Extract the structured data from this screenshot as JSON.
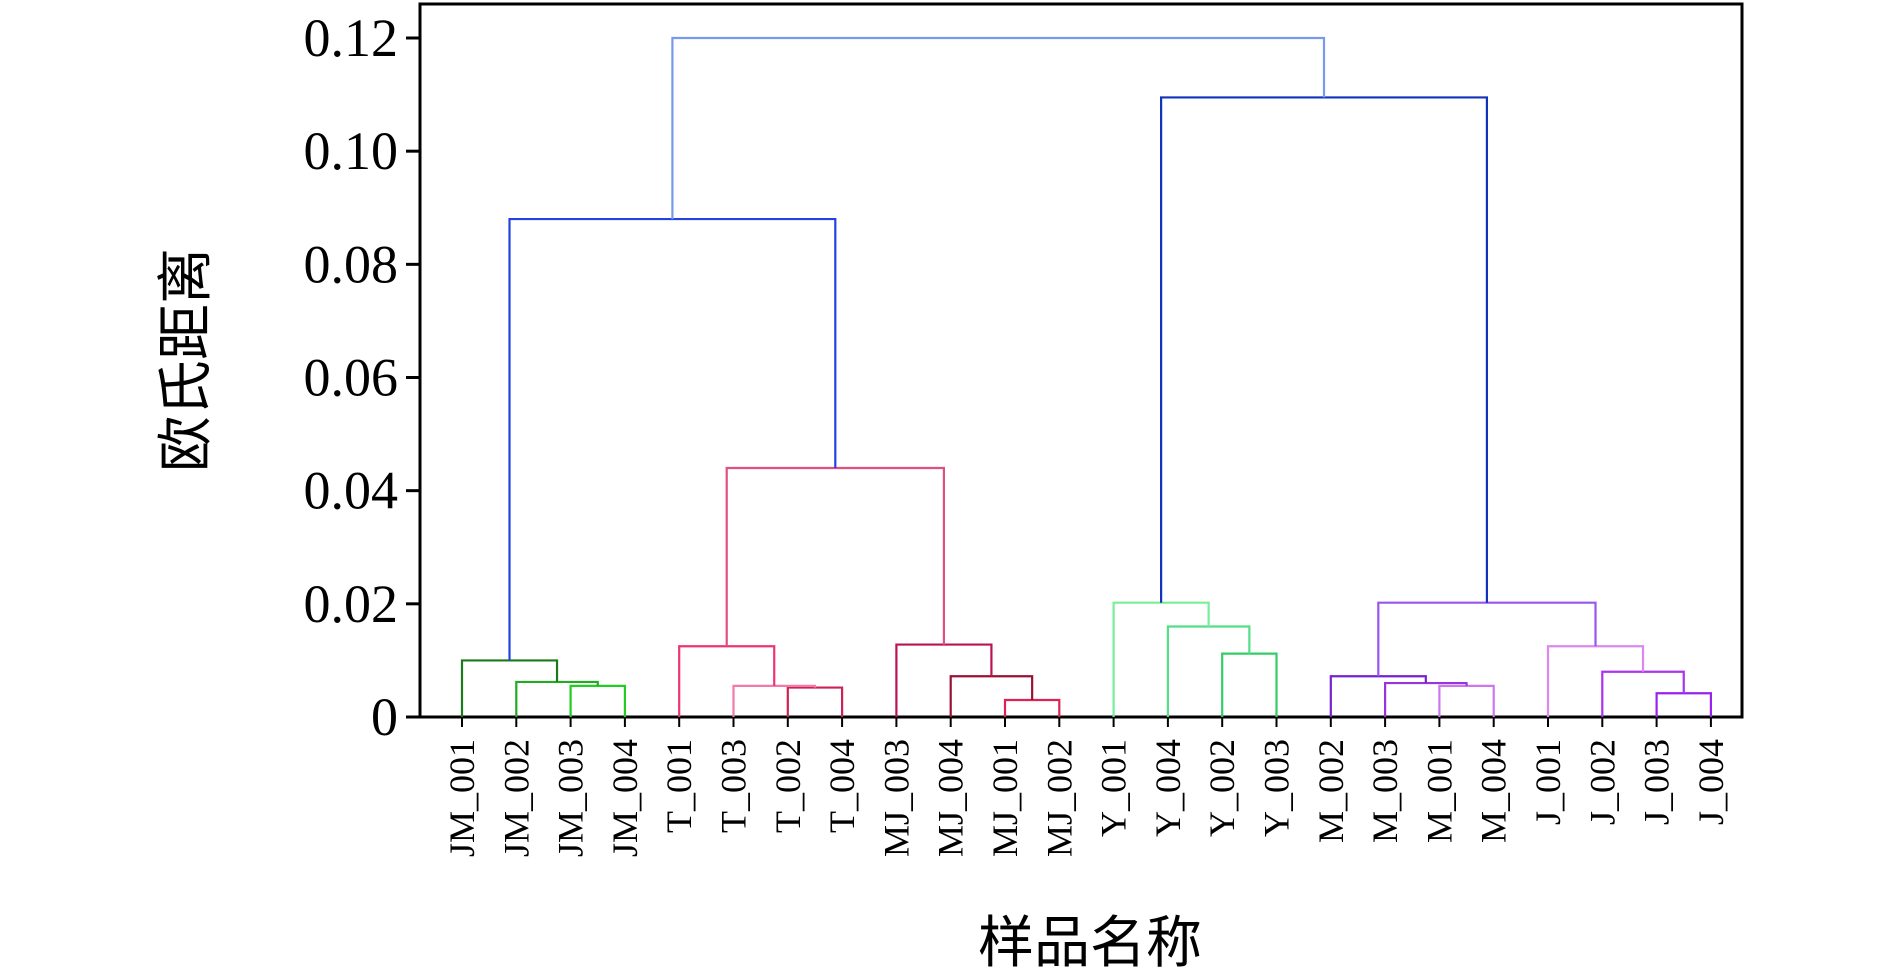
{
  "chart_data": {
    "type": "dendrogram",
    "title": "",
    "xlabel": "样品名称",
    "ylabel": "欧氏距离",
    "ylim": [
      0,
      0.12
    ],
    "yticks": [
      "0",
      "0.02",
      "0.04",
      "0.06",
      "0.08",
      "0.10",
      "0.12"
    ],
    "grid": false,
    "leaves": [
      "JM_001",
      "JM_002",
      "JM_003",
      "JM_004",
      "T_001",
      "T_003",
      "T_002",
      "T_004",
      "MJ_003",
      "MJ_004",
      "MJ_001",
      "MJ_002",
      "Y_001",
      "Y_004",
      "Y_002",
      "Y_003",
      "M_002",
      "M_003",
      "M_001",
      "M_004",
      "J_001",
      "J_002",
      "J_003",
      "J_004"
    ],
    "merges": [
      {
        "id": "N1",
        "children": [
          "JM_003",
          "JM_004"
        ],
        "height": 0.0055,
        "color": "#22cc22"
      },
      {
        "id": "N2",
        "children": [
          "JM_002",
          "N1"
        ],
        "height": 0.0062,
        "color": "#22aa22"
      },
      {
        "id": "N3",
        "children": [
          "JM_001",
          "N2"
        ],
        "height": 0.01,
        "color": "#1b7a1b"
      },
      {
        "id": "N4",
        "children": [
          "T_002",
          "T_004"
        ],
        "height": 0.0052,
        "color": "#cc2255"
      },
      {
        "id": "N5",
        "children": [
          "T_003",
          "N4"
        ],
        "height": 0.0055,
        "color": "#f27aa9"
      },
      {
        "id": "N6",
        "children": [
          "T_001",
          "N5"
        ],
        "height": 0.0125,
        "color": "#ee3377"
      },
      {
        "id": "N7",
        "children": [
          "MJ_001",
          "MJ_002"
        ],
        "height": 0.003,
        "color": "#dd2255"
      },
      {
        "id": "N8",
        "children": [
          "MJ_004",
          "N7"
        ],
        "height": 0.0072,
        "color": "#991133"
      },
      {
        "id": "N9",
        "children": [
          "MJ_003",
          "N8"
        ],
        "height": 0.0128,
        "color": "#bb1155"
      },
      {
        "id": "N10",
        "children": [
          "N6",
          "N9"
        ],
        "height": 0.044,
        "color": "#e0507f"
      },
      {
        "id": "N11",
        "children": [
          "N3",
          "N10"
        ],
        "height": 0.088,
        "color": "#2244dd"
      },
      {
        "id": "N12",
        "children": [
          "Y_002",
          "Y_003"
        ],
        "height": 0.0112,
        "color": "#33cc66"
      },
      {
        "id": "N13",
        "children": [
          "Y_004",
          "N12"
        ],
        "height": 0.016,
        "color": "#55dd88"
      },
      {
        "id": "N14",
        "children": [
          "Y_001",
          "N13"
        ],
        "height": 0.0202,
        "color": "#77ee99"
      },
      {
        "id": "N15",
        "children": [
          "M_001",
          "M_004"
        ],
        "height": 0.0055,
        "color": "#cc77ee"
      },
      {
        "id": "N16",
        "children": [
          "M_003",
          "N15"
        ],
        "height": 0.006,
        "color": "#9933dd"
      },
      {
        "id": "N17",
        "children": [
          "M_002",
          "N16"
        ],
        "height": 0.0072,
        "color": "#7722cc"
      },
      {
        "id": "N18",
        "children": [
          "J_003",
          "J_004"
        ],
        "height": 0.0042,
        "color": "#9922ee"
      },
      {
        "id": "N19",
        "children": [
          "J_002",
          "N18"
        ],
        "height": 0.008,
        "color": "#aa33ee"
      },
      {
        "id": "N20",
        "children": [
          "J_001",
          "N19"
        ],
        "height": 0.0125,
        "color": "#dd88ee"
      },
      {
        "id": "N21",
        "children": [
          "N17",
          "N20"
        ],
        "height": 0.0202,
        "color": "#9955ee"
      },
      {
        "id": "N22",
        "children": [
          "N14",
          "N21"
        ],
        "height": 0.1095,
        "color": "#1133bb"
      },
      {
        "id": "N23",
        "children": [
          "N11",
          "N22"
        ],
        "height": 0.12,
        "color": "#7799ee"
      }
    ]
  }
}
